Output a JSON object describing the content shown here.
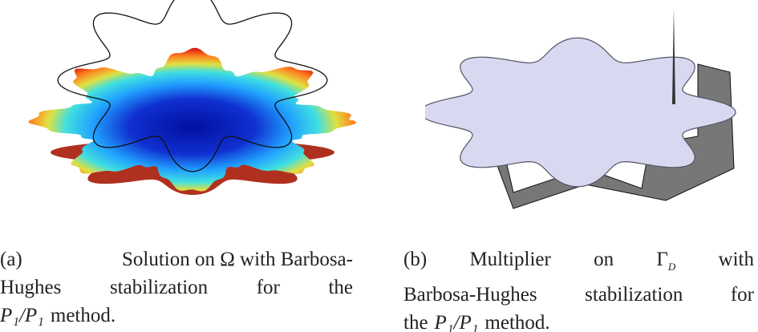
{
  "figures": [
    {
      "label": "(a)",
      "caption": {
        "line1": "Solution on Ω with Barbosa-",
        "line2": "Hughes stabilization for the",
        "line3_math": "P₁/P₁",
        "line3_text": "method."
      }
    },
    {
      "label": "(b)",
      "caption": {
        "line1_word": "Multiplier",
        "line1_on": "on",
        "line1_symbol": "Γ",
        "line1_sub": "D",
        "line1_with": "with",
        "line2": "Barbosa-Hughes stabilization for",
        "line3_the": "the",
        "line3_math": "P₁/P₁",
        "line3_text": "method."
      }
    }
  ]
}
